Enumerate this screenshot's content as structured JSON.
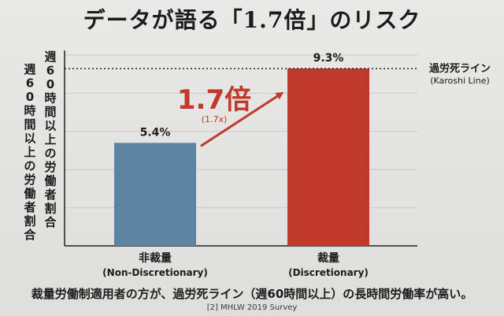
{
  "title": "データが語る「1.7倍」のリスク",
  "caption": "裁量労働制適用者の方が、過労死ライン（週60時間以上）の長時間労働率が高い。",
  "footnote": "[2] MHLW 2019 Survey",
  "colors": {
    "non_discretionary": "#5b84a0",
    "discretionary": "#c0392b",
    "accent_red": "#c0392b",
    "text": "#1b1b1b"
  },
  "chart_data": {
    "type": "bar",
    "ylabel": "週60時間以上の労働者割合",
    "categories": [
      {
        "label": "非裁量",
        "sublabel": "(Non-Discretionary)"
      },
      {
        "label": "裁量",
        "sublabel": "(Discretionary)"
      }
    ],
    "values": [
      5.4,
      9.3
    ],
    "value_labels": [
      "5.4%",
      "9.3%"
    ],
    "ylim": [
      0,
      10
    ],
    "grid": true,
    "reference_line": {
      "value": 9.3,
      "label": "過労死ライン",
      "sublabel": "(Karoshi Line)",
      "style": "dotted"
    },
    "annotation": {
      "text": "1.7倍",
      "subtext": "(1.7x)",
      "type": "arrow",
      "from_category": 0,
      "to_category": 1
    }
  }
}
